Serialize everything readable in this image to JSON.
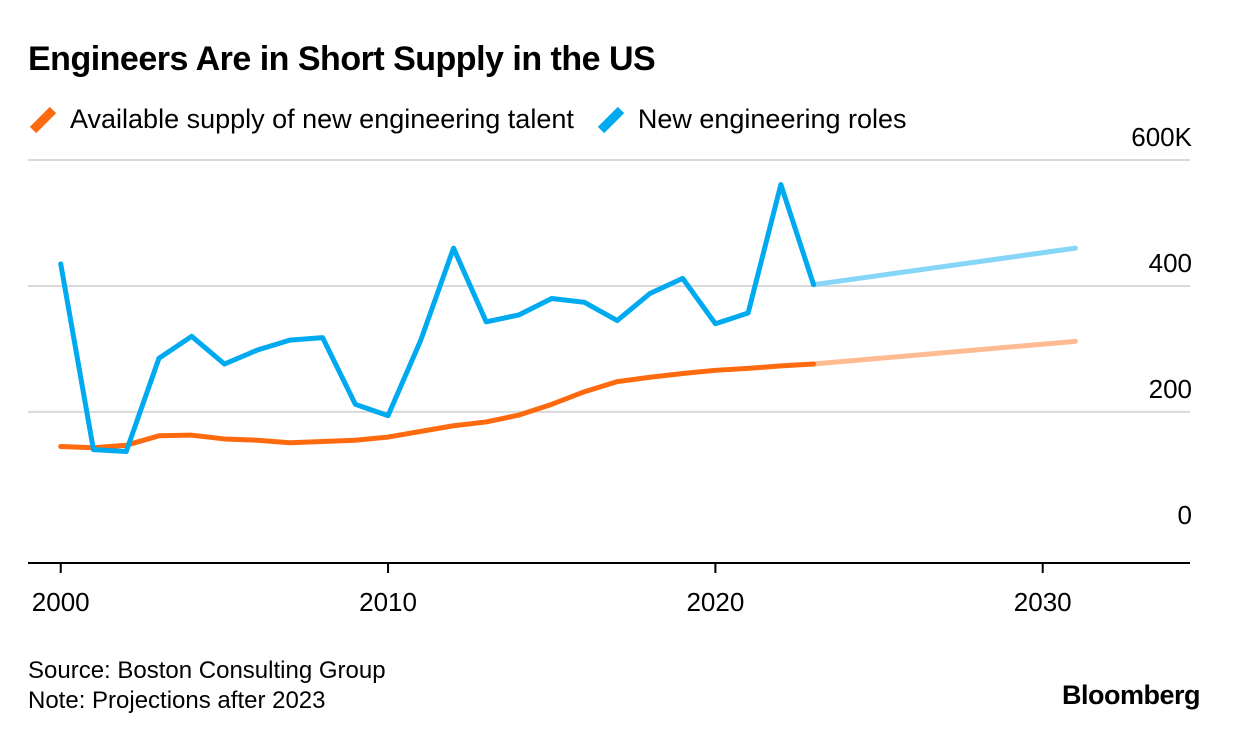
{
  "title": "Engineers Are in Short Supply in the US",
  "legend": [
    {
      "label": "Available supply of new engineering talent",
      "color": "#ff6a0e"
    },
    {
      "label": "New engineering roles",
      "color": "#00aaf0"
    }
  ],
  "footer": {
    "source": "Source: Boston Consulting Group",
    "note": "Note: Projections after 2023"
  },
  "brand": "Bloomberg",
  "colors": {
    "supply": "#ff6a0e",
    "supply_projection": "#ffbb92",
    "roles": "#00aaf0",
    "roles_projection": "#86d6f8",
    "grid": "#d9d9d9"
  },
  "chart_data": {
    "type": "line",
    "title": "Engineers Are in Short Supply in the US",
    "xlabel": "",
    "ylabel": "",
    "xlim": [
      1999,
      2034.5
    ],
    "ylim": [
      -40,
      600
    ],
    "y_ticks": [
      0,
      200,
      400,
      600
    ],
    "y_tick_labels": [
      "0",
      "200",
      "400",
      "600K"
    ],
    "x_ticks": [
      2000,
      2010,
      2020,
      2030
    ],
    "x_tick_labels": [
      "2000",
      "2010",
      "2020",
      "2030"
    ],
    "grid": true,
    "projection_start": 2023,
    "series": [
      {
        "name": "Available supply of new engineering talent",
        "x": [
          2000,
          2001,
          2002,
          2003,
          2004,
          2005,
          2006,
          2007,
          2008,
          2009,
          2010,
          2011,
          2012,
          2013,
          2014,
          2015,
          2016,
          2017,
          2018,
          2019,
          2020,
          2021,
          2022,
          2023
        ],
        "values": [
          145,
          143,
          147,
          162,
          163,
          157,
          155,
          151,
          153,
          155,
          160,
          169,
          178,
          184,
          195,
          212,
          232,
          248,
          255,
          261,
          266,
          269,
          273,
          276
        ],
        "projection": {
          "x": [
            2023,
            2031
          ],
          "values": [
            276,
            312
          ]
        }
      },
      {
        "name": "New engineering roles",
        "x": [
          2000,
          2001,
          2002,
          2003,
          2004,
          2005,
          2006,
          2007,
          2008,
          2009,
          2010,
          2011,
          2012,
          2013,
          2014,
          2015,
          2016,
          2017,
          2018,
          2019,
          2020,
          2021,
          2022,
          2023
        ],
        "values": [
          435,
          140,
          137,
          285,
          320,
          276,
          298,
          314,
          318,
          212,
          194,
          314,
          460,
          343,
          354,
          380,
          374,
          345,
          388,
          412,
          340,
          357,
          561,
          402
        ],
        "projection": {
          "x": [
            2023,
            2031
          ],
          "values": [
            402,
            460
          ]
        }
      }
    ]
  }
}
